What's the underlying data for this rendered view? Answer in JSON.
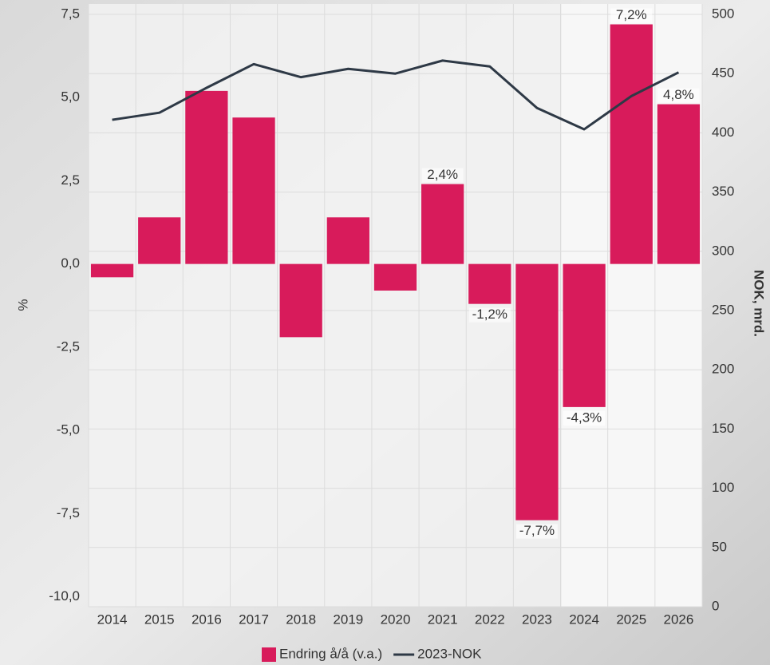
{
  "chart_data": {
    "type": "bar-line",
    "categories": [
      "2014",
      "2015",
      "2016",
      "2017",
      "2018",
      "2019",
      "2020",
      "2021",
      "2022",
      "2023",
      "2024",
      "2025",
      "2026"
    ],
    "series": [
      {
        "name": "Endring å/å (v.a.)",
        "type": "bar",
        "color": "#d81b5b",
        "values": [
          -0.4,
          1.4,
          5.2,
          4.4,
          -2.2,
          1.4,
          -0.8,
          2.4,
          -1.2,
          -7.7,
          -4.3,
          7.2,
          4.8
        ],
        "value_labels": [
          null,
          null,
          null,
          null,
          null,
          null,
          null,
          "2,4%",
          "-1,2%",
          "-7,7%",
          "-4,3%",
          "7,2%",
          "4,8%"
        ]
      },
      {
        "name": "2023-NOK",
        "type": "line",
        "axis": "y2",
        "color": "#2e3946",
        "values": [
          411,
          417,
          438,
          458,
          447,
          454,
          450,
          461,
          456,
          421,
          403,
          431,
          451
        ]
      }
    ],
    "ylabel": "%",
    "y2label": "NOK, mrd.",
    "ylim": [
      -10.3,
      7.5
    ],
    "yticks": [
      {
        "value": -10,
        "label": "-10,0"
      },
      {
        "value": -7.5,
        "label": "-7,5"
      },
      {
        "value": -5,
        "label": "-5,0"
      },
      {
        "value": -2.5,
        "label": "-2,5"
      },
      {
        "value": 0,
        "label": "0,0"
      },
      {
        "value": 2.5,
        "label": "2,5"
      },
      {
        "value": 5,
        "label": "5,0"
      },
      {
        "value": 7.5,
        "label": "7,5"
      }
    ],
    "y2lim": [
      0,
      500
    ],
    "y2ticks": [
      0,
      50,
      100,
      150,
      200,
      250,
      300,
      350,
      400,
      450,
      500
    ],
    "grid": true,
    "legend": "bottom"
  }
}
